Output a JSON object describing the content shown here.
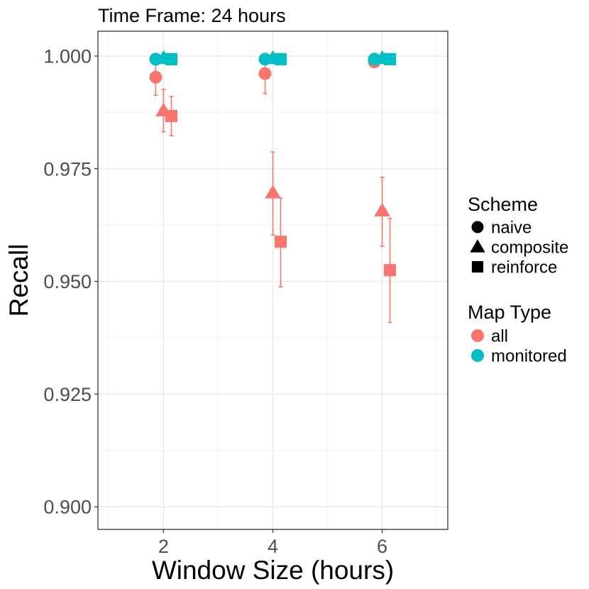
{
  "chart_data": {
    "type": "scatter",
    "title": "Time Frame: 24 hours",
    "xlabel": "Window Size (hours)",
    "ylabel": "Recall",
    "xlim": [
      0.8,
      7.2
    ],
    "ylim": [
      0.895,
      1.0055
    ],
    "x_ticks": [
      "2",
      "4",
      "6"
    ],
    "y_ticks": [
      "0.900",
      "0.925",
      "0.950",
      "0.975",
      "1.000"
    ],
    "grid": true,
    "error_bars": true,
    "legend_position": "right",
    "legends": {
      "scheme": {
        "title": "Scheme",
        "items": [
          {
            "label": "naive",
            "shape": "circle"
          },
          {
            "label": "composite",
            "shape": "triangle"
          },
          {
            "label": "reinforce",
            "shape": "square"
          }
        ]
      },
      "map_type": {
        "title": "Map Type",
        "items": [
          {
            "label": "all",
            "color": "#F8766D"
          },
          {
            "label": "monitored",
            "color": "#00BFC4"
          }
        ]
      }
    },
    "series": [
      {
        "scheme": "naive",
        "map_type": "all",
        "color": "#F8766D",
        "shape": "circle",
        "x": [
          2,
          4,
          6
        ],
        "y": [
          0.9953,
          0.9961,
          0.9987
        ],
        "err_low": [
          0.9913,
          0.9917,
          null
        ],
        "err_high": [
          0.999,
          0.9998,
          null
        ]
      },
      {
        "scheme": "composite",
        "map_type": "all",
        "color": "#F8766D",
        "shape": "triangle",
        "x": [
          2,
          4,
          6
        ],
        "y": [
          0.9879,
          0.9697,
          0.9657
        ],
        "err_low": [
          0.9832,
          0.9603,
          0.9578
        ],
        "err_high": [
          0.9926,
          0.9787,
          0.9731
        ]
      },
      {
        "scheme": "reinforce",
        "map_type": "all",
        "color": "#F8766D",
        "shape": "square",
        "x": [
          2,
          4,
          6
        ],
        "y": [
          0.9867,
          0.9588,
          0.9525
        ],
        "err_low": [
          0.9823,
          0.9488,
          0.9409
        ],
        "err_high": [
          0.991,
          0.9685,
          0.964
        ]
      },
      {
        "scheme": "naive",
        "map_type": "monitored",
        "color": "#00BFC4",
        "shape": "circle",
        "x": [
          2,
          4,
          6
        ],
        "y": [
          0.9993,
          0.9993,
          0.9993
        ],
        "err_low": [
          null,
          null,
          null
        ],
        "err_high": [
          null,
          null,
          null
        ]
      },
      {
        "scheme": "composite",
        "map_type": "monitored",
        "color": "#00BFC4",
        "shape": "triangle",
        "x": [
          2,
          4,
          6
        ],
        "y": [
          0.9995,
          0.9995,
          0.9995
        ],
        "err_low": [
          null,
          null,
          null
        ],
        "err_high": [
          null,
          null,
          null
        ]
      },
      {
        "scheme": "reinforce",
        "map_type": "monitored",
        "color": "#00BFC4",
        "shape": "square",
        "x": [
          2,
          4,
          6
        ],
        "y": [
          0.9993,
          0.9993,
          0.9993
        ],
        "err_low": [
          null,
          null,
          null
        ],
        "err_high": [
          null,
          null,
          null
        ]
      }
    ]
  }
}
